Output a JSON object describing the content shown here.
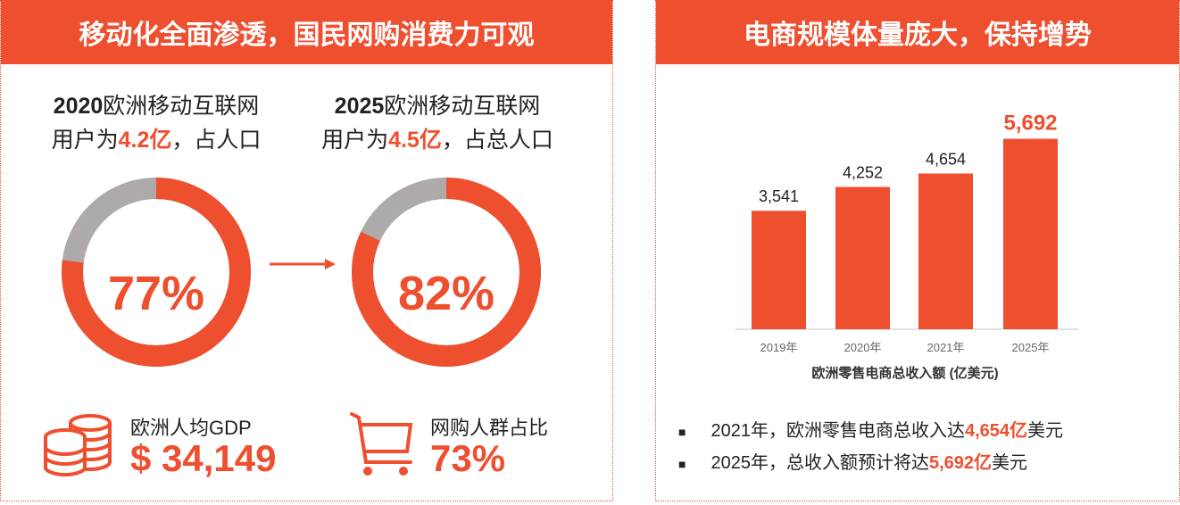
{
  "left": {
    "title": "移动化全面渗透，国民网购消费力可观",
    "stat2020": {
      "line1_year": "2020",
      "line1_rest": "欧洲移动互联网",
      "line2_pre": "用户为",
      "line2_value": "4.2亿",
      "line2_post": "，占人口",
      "percent": "77%",
      "fraction": 0.77
    },
    "stat2025": {
      "line1_year": "2025",
      "line1_rest": "欧洲移动互联网",
      "line2_pre": "用户为",
      "line2_value": "4.5亿",
      "line2_post": "，占总人口",
      "percent": "82%",
      "fraction": 0.82
    },
    "gdp": {
      "label": "欧洲人均GDP",
      "value": "$ 34,149",
      "icon": "coins-icon"
    },
    "shoppers": {
      "label": "网购人群占比",
      "value": "73%",
      "icon": "cart-icon"
    }
  },
  "right": {
    "title": "电商规模体量庞大，保持增势",
    "bullets": [
      {
        "pre": "2021年，欧洲零售电商总收入达",
        "value": "4,654亿",
        "post": "美元"
      },
      {
        "pre": "2025年，总收入额预计将达",
        "value": "5,692亿",
        "post": "美元"
      }
    ]
  },
  "colors": {
    "accent": "#ee4f2f",
    "gray": "#aeaaaa"
  },
  "chart_data": {
    "type": "bar",
    "categories": [
      "2019年",
      "2020年",
      "2021年",
      "2025年"
    ],
    "values": [
      3541,
      4252,
      4654,
      5692
    ],
    "data_labels": [
      "3,541",
      "4,252",
      "4,654",
      "5,692"
    ],
    "xlabel": "欧洲零售电商总收入额 (亿美元)",
    "ylim": [
      0,
      6000
    ],
    "grid": false
  }
}
